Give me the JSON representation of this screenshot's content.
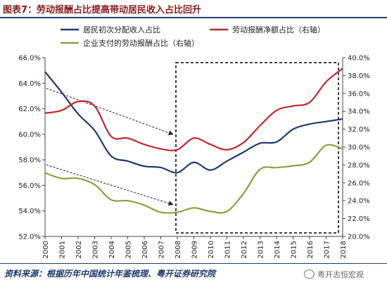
{
  "header": {
    "title": "图表7：劳动报酬占比提高带动居民收入占比回升"
  },
  "footer": {
    "source": "资料来源：根据历年中国统计年鉴梳理、粤开证券研究院",
    "watermark": "粤开志恒宏观"
  },
  "chart_data": {
    "type": "line",
    "x": [
      "2000",
      "2001",
      "2002",
      "2003",
      "2004",
      "2005",
      "2006",
      "2007",
      "2008",
      "2009",
      "2010",
      "2011",
      "2012",
      "2013",
      "2014",
      "2015",
      "2016",
      "2017",
      "2018"
    ],
    "left_axis": {
      "ticks": [
        "52.0%",
        "54.0%",
        "56.0%",
        "58.0%",
        "60.0%",
        "62.0%",
        "64.0%",
        "66.0%"
      ],
      "ylim": [
        52,
        66
      ]
    },
    "right_axis": {
      "ticks": [
        "20.0%",
        "22.0%",
        "24.0%",
        "26.0%",
        "28.0%",
        "30.0%",
        "32.0%",
        "34.0%",
        "36.0%",
        "38.0%",
        "40.0%"
      ],
      "ylim": [
        20,
        40
      ]
    },
    "series": [
      {
        "name": "居民初次分配收入占比",
        "axis": "left",
        "color": "#1f3a6e",
        "values": [
          64.9,
          63.3,
          61.6,
          60.3,
          58.3,
          57.9,
          57.5,
          57.4,
          57.0,
          57.8,
          57.2,
          57.9,
          58.6,
          59.3,
          59.4,
          60.4,
          60.8,
          61.0,
          61.2
        ]
      },
      {
        "name": "劳动报酬净额占比（右轴）",
        "axis": "right",
        "color": "#c0282d",
        "values": [
          33.8,
          34.1,
          35.1,
          34.6,
          31.2,
          31.0,
          30.3,
          29.8,
          29.7,
          31.0,
          30.3,
          29.7,
          30.5,
          32.4,
          34.1,
          34.6,
          35.0,
          37.3,
          38.8
        ]
      },
      {
        "name": "企业支付的劳动报酬占比（右轴）",
        "axis": "right",
        "color": "#8aa03c",
        "values": [
          27.1,
          26.5,
          26.5,
          25.8,
          24.1,
          24.0,
          23.5,
          22.7,
          22.7,
          23.2,
          22.8,
          22.8,
          24.8,
          27.5,
          27.7,
          27.9,
          28.3,
          30.2,
          29.8
        ]
      }
    ]
  },
  "colors": {
    "title": "#8b1a1a",
    "rule": "#1f3a6e",
    "box": "#000000"
  }
}
